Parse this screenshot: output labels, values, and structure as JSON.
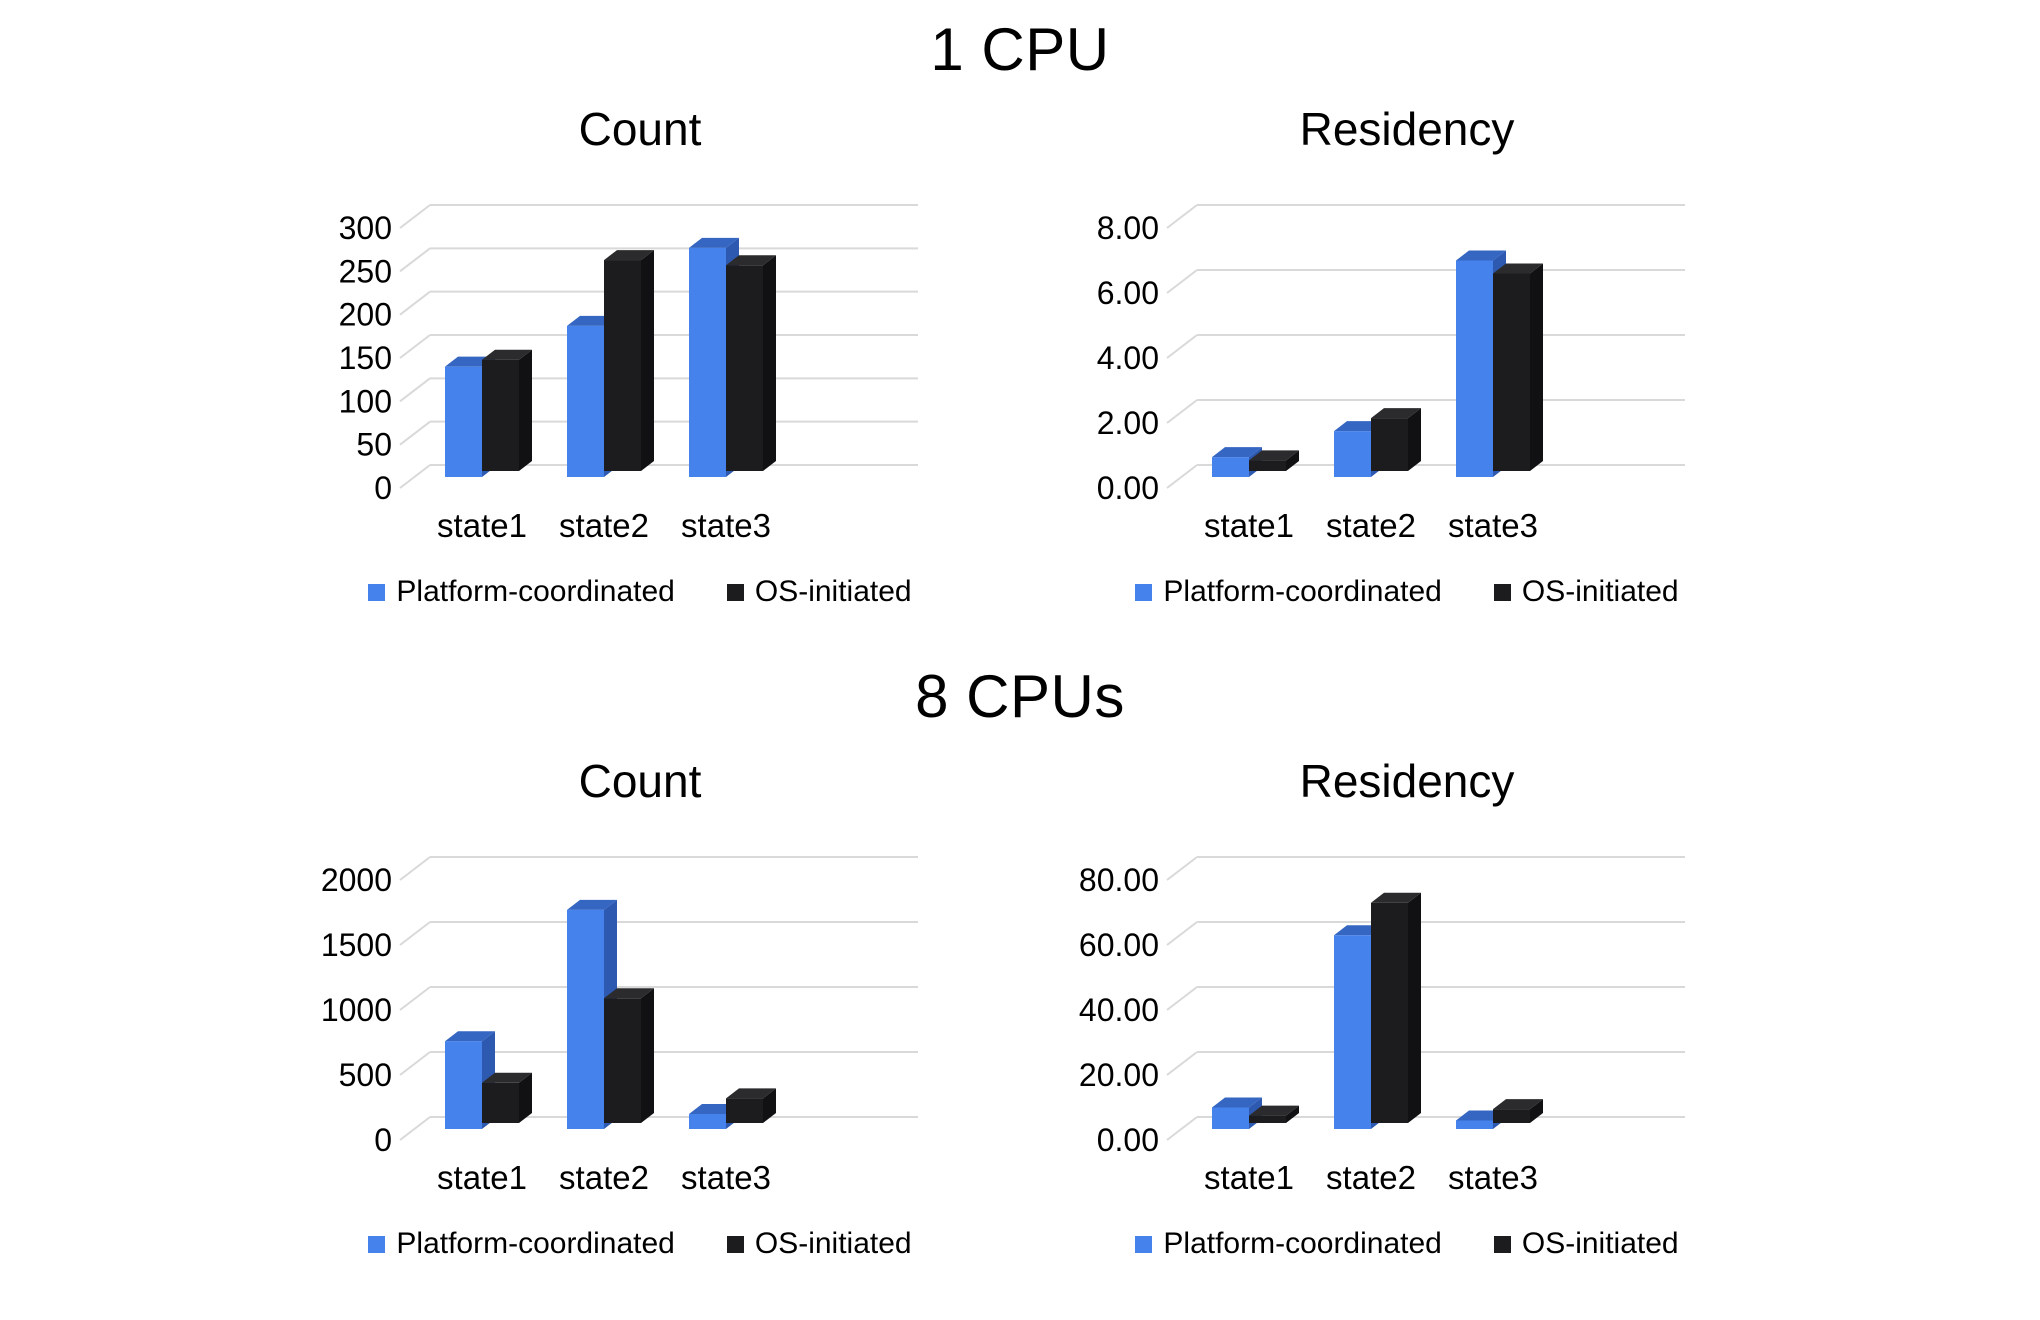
{
  "sections": [
    {
      "title": "1 CPU"
    },
    {
      "title": "8 CPUs"
    }
  ],
  "colors": {
    "gridline": "#D9D9D9",
    "text": "#000000",
    "platform_coordinated_blue": "#4582EC",
    "os_initiated_black": "#1C1C1E"
  },
  "chart_data": [
    {
      "type": "bar",
      "style": "3d-column",
      "section": "1 CPU",
      "title": "Count",
      "categories": [
        "state1",
        "state2",
        "state3"
      ],
      "y_ticks": [
        "300",
        "250",
        "200",
        "150",
        "100",
        "50",
        "0"
      ],
      "ylim": [
        0,
        300
      ],
      "grid": true,
      "legend_position": "bottom",
      "series": [
        {
          "name": "Platform-coordinated",
          "color": "#4582EC",
          "color_top": "#3566C2",
          "color_side": "#2D59B0",
          "values": [
            125,
            172,
            262
          ]
        },
        {
          "name": "OS-initiated",
          "color": "#1C1C1E",
          "color_top": "#2B2B2D",
          "color_side": "#111113",
          "values": [
            133,
            248,
            242
          ]
        }
      ]
    },
    {
      "type": "bar",
      "style": "3d-column",
      "section": "1 CPU",
      "title": "Residency",
      "categories": [
        "state1",
        "state2",
        "state3"
      ],
      "y_ticks": [
        "8.00",
        "6.00",
        "4.00",
        "2.00",
        "0.00"
      ],
      "ylim": [
        0,
        8
      ],
      "grid": true,
      "legend_position": "bottom",
      "series": [
        {
          "name": "Platform-coordinated",
          "color": "#4582EC",
          "color_top": "#3566C2",
          "color_side": "#2D59B0",
          "values": [
            0.55,
            1.35,
            6.6
          ]
        },
        {
          "name": "OS-initiated",
          "color": "#1C1C1E",
          "color_top": "#2B2B2D",
          "color_side": "#111113",
          "values": [
            0.45,
            1.75,
            6.2
          ]
        }
      ]
    },
    {
      "type": "bar",
      "style": "3d-column",
      "section": "8 CPUs",
      "title": "Count",
      "categories": [
        "state1",
        "state2",
        "state3"
      ],
      "y_ticks": [
        "2000",
        "1500",
        "1000",
        "500",
        "0"
      ],
      "ylim": [
        0,
        2000
      ],
      "grid": true,
      "legend_position": "bottom",
      "series": [
        {
          "name": "Platform-coordinated",
          "color": "#4582EC",
          "color_top": "#3566C2",
          "color_side": "#2D59B0",
          "values": [
            660,
            1670,
            100
          ]
        },
        {
          "name": "OS-initiated",
          "color": "#1C1C1E",
          "color_top": "#2B2B2D",
          "color_side": "#111113",
          "values": [
            340,
            990,
            220
          ]
        }
      ]
    },
    {
      "type": "bar",
      "style": "3d-column",
      "section": "8 CPUs",
      "title": "Residency",
      "categories": [
        "state1",
        "state2",
        "state3"
      ],
      "y_ticks": [
        "80.00",
        "60.00",
        "40.00",
        "20.00",
        "0.00"
      ],
      "ylim": [
        0,
        80
      ],
      "grid": true,
      "legend_position": "bottom",
      "series": [
        {
          "name": "Platform-coordinated",
          "color": "#4582EC",
          "color_top": "#3566C2",
          "color_side": "#2D59B0",
          "values": [
            6,
            59,
            2
          ]
        },
        {
          "name": "OS-initiated",
          "color": "#1C1C1E",
          "color_top": "#2B2B2D",
          "color_side": "#111113",
          "values": [
            3.5,
            69,
            5.5
          ]
        }
      ]
    }
  ]
}
